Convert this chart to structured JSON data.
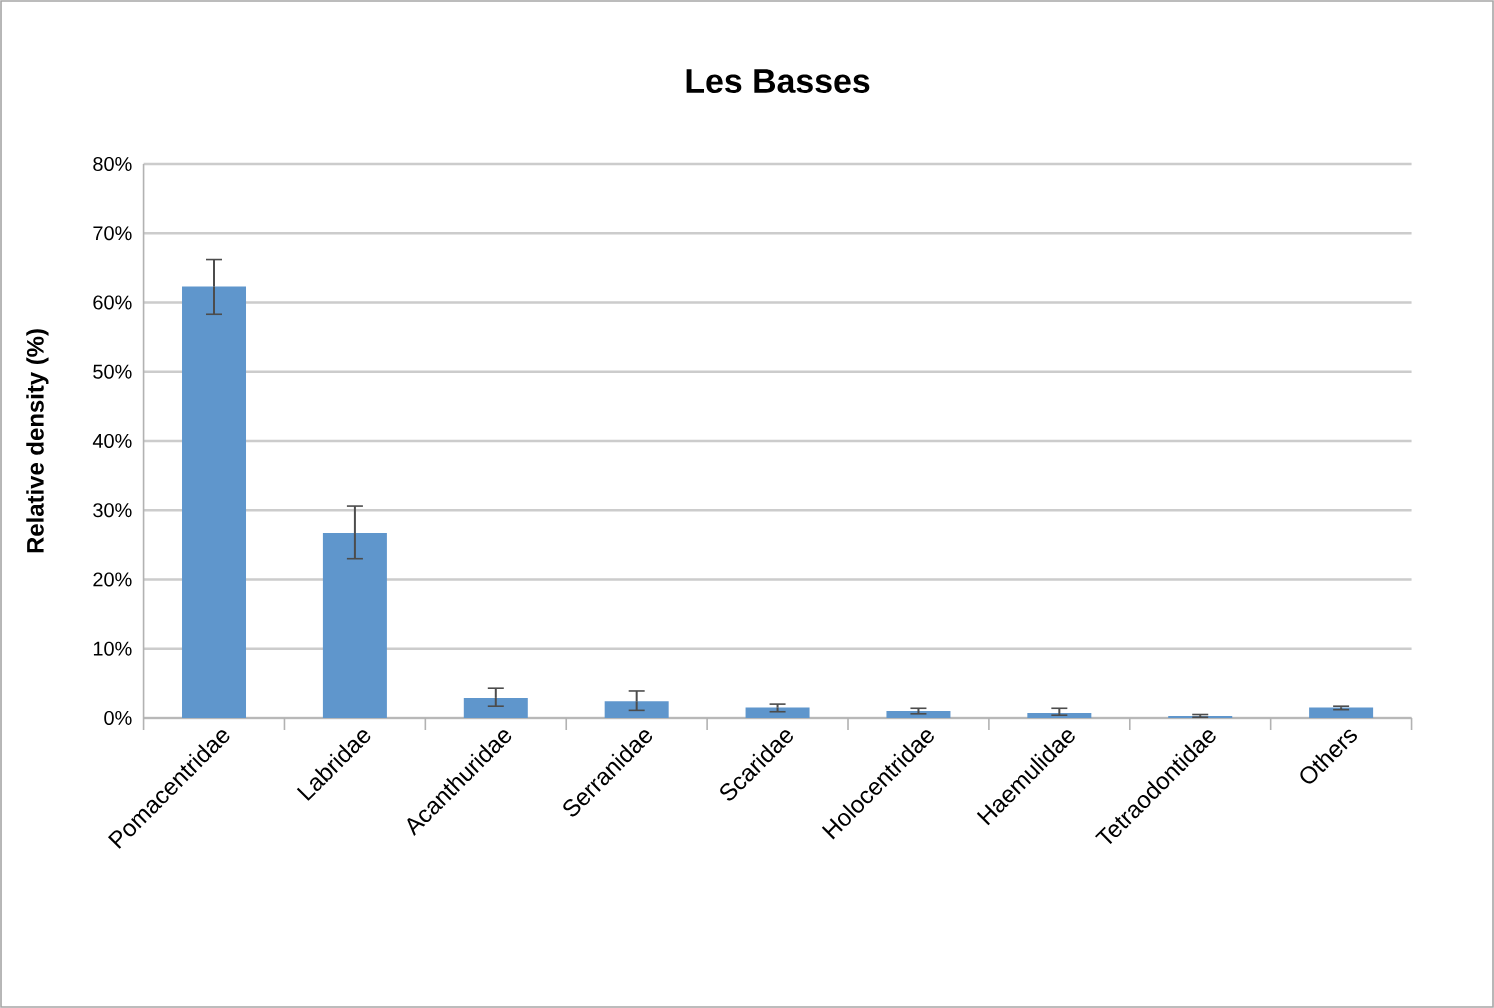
{
  "chart_data": {
    "type": "bar",
    "title": "Les Basses",
    "ylabel": "Relative density (%)",
    "categories": [
      "Pomacentridae",
      "Labridae",
      "Acanthuridae",
      "Serranidae",
      "Scaridae",
      "Holocentridae",
      "Haemulidae",
      "Tetraodontidae",
      "Others"
    ],
    "values": [
      62.3,
      26.7,
      2.9,
      2.4,
      1.5,
      1.0,
      0.7,
      0.3,
      1.5
    ],
    "errors": [
      [
        58.3,
        66.2
      ],
      [
        23.0,
        30.6
      ],
      [
        1.7,
        4.3
      ],
      [
        1.1,
        3.9
      ],
      [
        0.9,
        2.0
      ],
      [
        0.6,
        1.4
      ],
      [
        0.4,
        1.4
      ],
      [
        0.1,
        0.5
      ],
      [
        1.2,
        1.7
      ]
    ],
    "color": "#5f96cc",
    "ylim": [
      0,
      80
    ],
    "yticks": [
      {
        "value": 0,
        "label": "0%"
      },
      {
        "value": 10,
        "label": "10%"
      },
      {
        "value": 20,
        "label": "20%"
      },
      {
        "value": 30,
        "label": "30%"
      },
      {
        "value": 40,
        "label": "40%"
      },
      {
        "value": 50,
        "label": "50%"
      },
      {
        "value": 60,
        "label": "60%"
      },
      {
        "value": 70,
        "label": "70%"
      },
      {
        "value": 80,
        "label": "80%"
      }
    ],
    "grid": "y"
  }
}
